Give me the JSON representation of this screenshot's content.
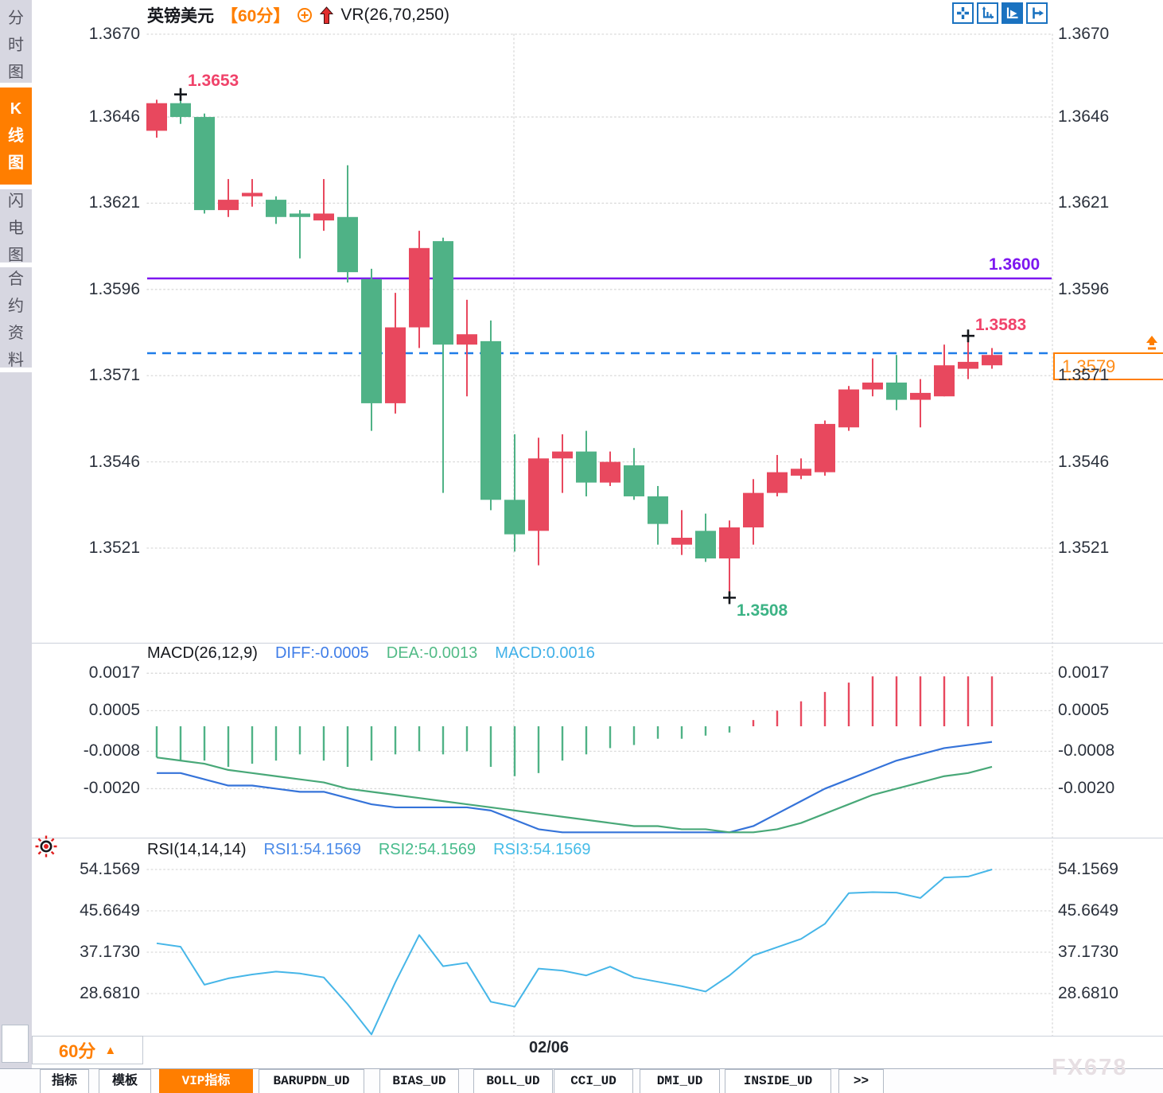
{
  "header": {
    "symbol": "英镑美元",
    "period": "【60分】",
    "indicator": "VR(26,70,250)"
  },
  "sidebar": {
    "items": [
      {
        "label": "分时图",
        "active": false
      },
      {
        "label": "K线图",
        "active": true
      },
      {
        "label": "闪电图",
        "active": false
      },
      {
        "label": "合约资料",
        "active": false
      }
    ]
  },
  "toolbar": {
    "buttons": [
      "crosshair",
      "fit-scale",
      "auto-scroll",
      "pan-right"
    ],
    "active_button": "auto-scroll"
  },
  "icons": {
    "period-up-triangle": "▲",
    "circle-plus": "⊕",
    "trend-up-arrow": "↑",
    "indicator-sun": "☀",
    "crosshair": "+",
    "fit-scale": "⤢",
    "auto-scroll": "▶",
    "pan-right": "⇥"
  },
  "colors": {
    "accent_orange": "#ff7e00",
    "up_candle": "#e8485e",
    "down_candle": "#4fb286",
    "purple_level_line": "#7d17f0",
    "current_price_dash": "#1f7ce8",
    "diff_line": "#3573d9",
    "dea_line": "#48a878",
    "macd_label": "#3fb0e8",
    "rsi_line": "#46b6e8",
    "toolbar_blue": "#1a72c0",
    "marker_pink": "#f0436a",
    "marker_green": "#3cb385"
  },
  "main_chart": {
    "y_tick_labels": [
      "1.3670",
      "1.3646",
      "1.3621",
      "1.3596",
      "1.3571",
      "1.3546",
      "1.3521"
    ],
    "annotations": {
      "marked_high": "1.3653",
      "marked_low": "1.3508",
      "marked_swing_high": "1.3583",
      "level_line": "1.3600",
      "current_price": "1.3579"
    },
    "markers": [
      {
        "candle_index": 1,
        "price": 1.3653,
        "kind": "high"
      },
      {
        "candle_index": 24,
        "price": 1.3508,
        "kind": "low"
      },
      {
        "candle_index": 34,
        "price": 1.3583,
        "kind": "high"
      }
    ]
  },
  "macd_panel": {
    "title": "MACD(26,12,9)",
    "readouts": [
      {
        "text": "DIFF:-0.0005",
        "color": "#3f7de8"
      },
      {
        "text": "DEA:-0.0013",
        "color": "#52bb87"
      },
      {
        "text": "MACD:0.0016",
        "color": "#3fb0e8"
      }
    ],
    "y_tick_labels": [
      "0.0017",
      "0.0005",
      "-0.0008",
      "-0.0020"
    ]
  },
  "rsi_panel": {
    "title": "RSI(14,14,14)",
    "readouts": [
      {
        "text": "RSI1:54.1569",
        "color": "#4a8ae8"
      },
      {
        "text": "RSI2:54.1569",
        "color": "#48bb8c"
      },
      {
        "text": "RSI3:54.1569",
        "color": "#46bce8"
      }
    ],
    "y_tick_labels": [
      "54.1569",
      "45.6649",
      "37.1730",
      "28.6810"
    ]
  },
  "bottom": {
    "period_label": "60分",
    "date_label": "02/06",
    "watermark": "FX678",
    "tabs": [
      {
        "label": "指标",
        "active": false
      },
      {
        "label": "模板",
        "active": false
      },
      {
        "label": "VIP指标",
        "active": true
      },
      {
        "label": "BARUPDN_UD",
        "active": false
      },
      {
        "label": "BIAS_UD",
        "active": false
      },
      {
        "label": "BOLL_UD",
        "active": false
      },
      {
        "label": "CCI_UD",
        "active": false
      },
      {
        "label": "DMI_UD",
        "active": false
      },
      {
        "label": "INSIDE_UD",
        "active": false
      },
      {
        "label": ">>",
        "active": false
      }
    ]
  },
  "chart_data": [
    {
      "type": "candlestick",
      "title": "英镑美元 60分",
      "up_color": "#e8485e",
      "down_color": "#4fb286",
      "y_ticks": [
        1.367,
        1.3646,
        1.3621,
        1.3596,
        1.3571,
        1.3546,
        1.3521
      ],
      "x_ticks": [
        {
          "label": "02/06",
          "candle_index": 16
        }
      ],
      "level_line": 1.36,
      "current_price_line": 1.3579,
      "marked_high": 1.3653,
      "marked_low": 1.3508,
      "marked_swing_high": 1.3583,
      "candles_ohlc": [
        [
          1.3642,
          1.3651,
          1.364,
          1.365
        ],
        [
          1.365,
          1.3653,
          1.3644,
          1.3646
        ],
        [
          1.3646,
          1.3647,
          1.3618,
          1.3619
        ],
        [
          1.3619,
          1.3628,
          1.3617,
          1.3622
        ],
        [
          1.3623,
          1.3628,
          1.362,
          1.3624
        ],
        [
          1.3622,
          1.3623,
          1.3615,
          1.3617
        ],
        [
          1.3618,
          1.3619,
          1.3605,
          1.3617
        ],
        [
          1.3616,
          1.3628,
          1.3613,
          1.3618
        ],
        [
          1.3617,
          1.3632,
          1.3598,
          1.3601
        ],
        [
          1.3599,
          1.3602,
          1.3555,
          1.3563
        ],
        [
          1.3563,
          1.3595,
          1.356,
          1.3585
        ],
        [
          1.3585,
          1.3613,
          1.3579,
          1.3608
        ],
        [
          1.361,
          1.3611,
          1.3537,
          1.358
        ],
        [
          1.358,
          1.3593,
          1.3565,
          1.3583
        ],
        [
          1.3581,
          1.3587,
          1.3532,
          1.3535
        ],
        [
          1.3535,
          1.3554,
          1.352,
          1.3525
        ],
        [
          1.3526,
          1.3553,
          1.3516,
          1.3547
        ],
        [
          1.3547,
          1.3554,
          1.3537,
          1.3549
        ],
        [
          1.3549,
          1.3555,
          1.3536,
          1.354
        ],
        [
          1.354,
          1.3549,
          1.3539,
          1.3546
        ],
        [
          1.3545,
          1.355,
          1.3535,
          1.3536
        ],
        [
          1.3536,
          1.3539,
          1.3522,
          1.3528
        ],
        [
          1.3522,
          1.3532,
          1.3519,
          1.3524
        ],
        [
          1.3526,
          1.3531,
          1.3517,
          1.3518
        ],
        [
          1.3518,
          1.3529,
          1.3508,
          1.3527
        ],
        [
          1.3527,
          1.3541,
          1.3522,
          1.3537
        ],
        [
          1.3537,
          1.3548,
          1.3536,
          1.3543
        ],
        [
          1.3542,
          1.3547,
          1.3541,
          1.3544
        ],
        [
          1.3543,
          1.3558,
          1.3542,
          1.3557
        ],
        [
          1.3556,
          1.3568,
          1.3555,
          1.3567
        ],
        [
          1.3567,
          1.3576,
          1.3565,
          1.3569
        ],
        [
          1.3569,
          1.3577,
          1.3561,
          1.3564
        ],
        [
          1.3564,
          1.357,
          1.3556,
          1.3566
        ],
        [
          1.3565,
          1.358,
          1.3565,
          1.3574
        ],
        [
          1.3573,
          1.3583,
          1.357,
          1.3575
        ],
        [
          1.3574,
          1.3579,
          1.3573,
          1.3577
        ]
      ]
    },
    {
      "type": "bar",
      "title": "MACD(26,12,9)",
      "readout": {
        "DIFF": -0.0005,
        "DEA": -0.0013,
        "MACD": 0.0016
      },
      "y_ticks": [
        0.0017,
        0.0005,
        -0.0008,
        -0.002
      ],
      "histogram": [
        -0.001,
        -0.0011,
        -0.0011,
        -0.0013,
        -0.0012,
        -0.0011,
        -0.0009,
        -0.0011,
        -0.0013,
        -0.0011,
        -0.0009,
        -0.0008,
        -0.0009,
        -0.0008,
        -0.0013,
        -0.0016,
        -0.0015,
        -0.0011,
        -0.0009,
        -0.0007,
        -0.0006,
        -0.0004,
        -0.0004,
        -0.0003,
        -0.0002,
        0.0002,
        0.0005,
        0.0008,
        0.0011,
        0.0014,
        0.0016,
        0.0016,
        0.0016,
        0.0016,
        0.0016,
        0.0016
      ],
      "series": [
        {
          "name": "DIFF",
          "color": "#3573d9",
          "values": [
            -0.0015,
            -0.0015,
            -0.0017,
            -0.0019,
            -0.0019,
            -0.002,
            -0.0021,
            -0.0021,
            -0.0023,
            -0.0025,
            -0.0026,
            -0.0026,
            -0.0026,
            -0.0026,
            -0.0027,
            -0.003,
            -0.0033,
            -0.0034,
            -0.0034,
            -0.0034,
            -0.0034,
            -0.0034,
            -0.0034,
            -0.0034,
            -0.0034,
            -0.0032,
            -0.0028,
            -0.0024,
            -0.002,
            -0.0017,
            -0.0014,
            -0.0011,
            -0.0009,
            -0.0007,
            -0.0006,
            -0.0005
          ]
        },
        {
          "name": "DEA",
          "color": "#48a878",
          "values": [
            -0.001,
            -0.0011,
            -0.0012,
            -0.0014,
            -0.0015,
            -0.0016,
            -0.0017,
            -0.0018,
            -0.002,
            -0.0021,
            -0.0022,
            -0.0023,
            -0.0024,
            -0.0025,
            -0.0026,
            -0.0027,
            -0.0028,
            -0.0029,
            -0.003,
            -0.0031,
            -0.0032,
            -0.0032,
            -0.0033,
            -0.0033,
            -0.0034,
            -0.0034,
            -0.0033,
            -0.0031,
            -0.0028,
            -0.0025,
            -0.0022,
            -0.002,
            -0.0018,
            -0.0016,
            -0.0015,
            -0.0013
          ]
        }
      ]
    },
    {
      "type": "line",
      "title": "RSI(14,14,14)",
      "readout": {
        "RSI1": 54.1569,
        "RSI2": 54.1569,
        "RSI3": 54.1569
      },
      "y_ticks": [
        54.1569,
        45.6649,
        37.173,
        28.681
      ],
      "series": [
        {
          "name": "RSI",
          "color": "#46b6e8",
          "values": [
            39.0,
            38.3,
            30.5,
            31.8,
            32.6,
            33.2,
            32.8,
            32.0,
            26.5,
            20.3,
            31.0,
            40.7,
            34.3,
            35.0,
            27.0,
            26.0,
            33.8,
            33.4,
            32.4,
            34.2,
            32.0,
            31.1,
            30.2,
            29.1,
            32.4,
            36.5,
            38.2,
            39.9,
            43.0,
            49.3,
            49.5,
            49.4,
            48.3,
            52.5,
            52.7,
            54.1569
          ]
        }
      ]
    }
  ]
}
